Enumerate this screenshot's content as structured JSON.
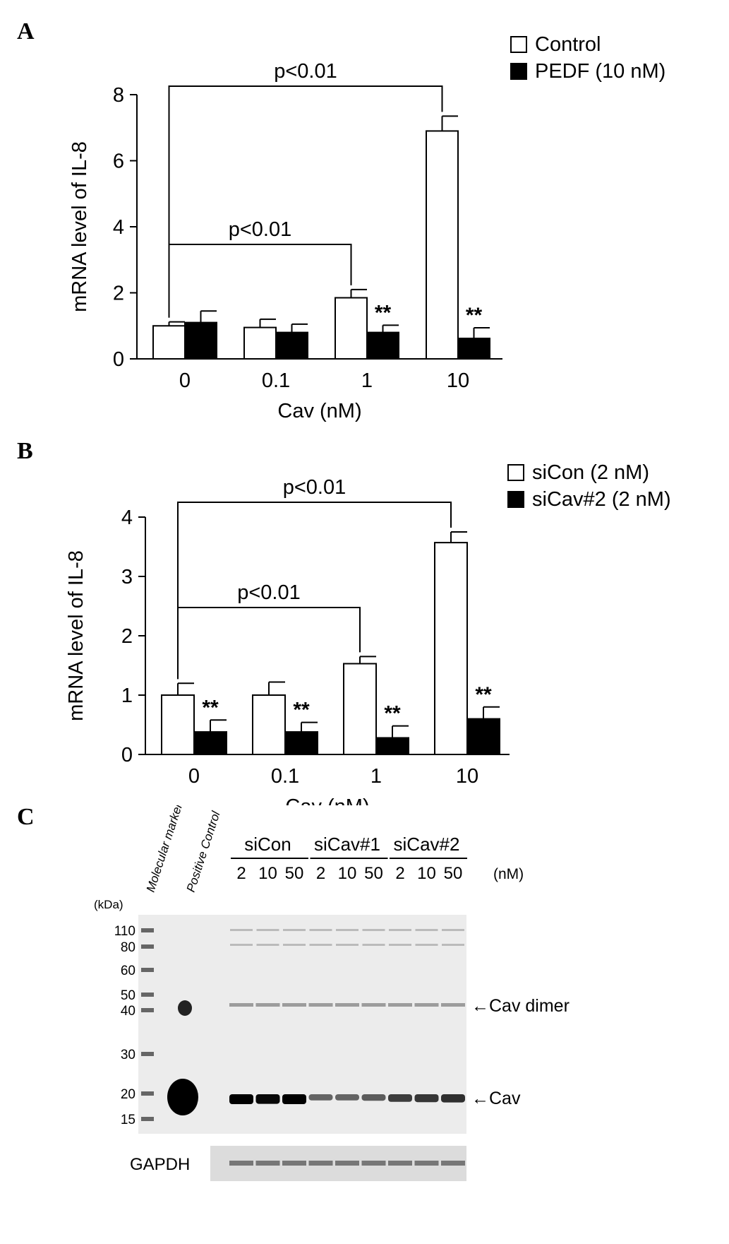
{
  "panels": {
    "a": {
      "letter": "A"
    },
    "b": {
      "letter": "B"
    },
    "c": {
      "letter": "C"
    }
  },
  "chart_data": [
    {
      "type": "bar",
      "panel": "A",
      "xlabel": "Cav (nM)",
      "ylabel": "mRNA level of IL-8",
      "categories": [
        "0",
        "0.1",
        "1",
        "10"
      ],
      "ylim": [
        0,
        8
      ],
      "yticks": [
        "0",
        "2",
        "4",
        "6",
        "8"
      ],
      "series": [
        {
          "name": "Control",
          "fill": "#ffffff",
          "values": [
            1.0,
            0.95,
            1.85,
            6.9
          ],
          "errors": [
            0.12,
            0.25,
            0.25,
            0.45
          ]
        },
        {
          "name": "PEDF (10 nM)",
          "fill": "#000000",
          "values": [
            1.1,
            0.8,
            0.8,
            0.62
          ],
          "errors": [
            0.35,
            0.25,
            0.22,
            0.32
          ]
        }
      ],
      "annotations": {
        "pvalue": [
          "p<0.01",
          "p<0.01"
        ],
        "significance": [
          "",
          "",
          "**",
          "**"
        ]
      },
      "legend_position": "top-right",
      "grid": false
    },
    {
      "type": "bar",
      "panel": "B",
      "xlabel": "Cav (nM)",
      "ylabel": "mRNA level of IL-8",
      "categories": [
        "0",
        "0.1",
        "1",
        "10"
      ],
      "ylim": [
        0,
        4
      ],
      "yticks": [
        "0",
        "1",
        "2",
        "3",
        "4"
      ],
      "series": [
        {
          "name": "siCon (2 nM)",
          "fill": "#ffffff",
          "values": [
            1.0,
            1.0,
            1.53,
            3.57
          ],
          "errors": [
            0.2,
            0.22,
            0.12,
            0.18
          ]
        },
        {
          "name": "siCav#2 (2 nM)",
          "fill": "#000000",
          "values": [
            0.38,
            0.38,
            0.28,
            0.6
          ],
          "errors": [
            0.2,
            0.16,
            0.2,
            0.2
          ]
        }
      ],
      "annotations": {
        "pvalue": [
          "p<0.01",
          "p<0.01"
        ],
        "significance": [
          "**",
          "**",
          "**",
          "**"
        ]
      },
      "legend_position": "top-right",
      "grid": false
    }
  ],
  "blot": {
    "lane_labels": [
      "Molecular marker",
      "Positive Control"
    ],
    "groups": [
      {
        "name": "siCon",
        "doses": [
          "2",
          "10",
          "50"
        ]
      },
      {
        "name": "siCav#1",
        "doses": [
          "2",
          "10",
          "50"
        ]
      },
      {
        "name": "siCav#2",
        "doses": [
          "2",
          "10",
          "50"
        ]
      }
    ],
    "dose_unit": "(nM)",
    "kda_label": "(kDa)",
    "markers": [
      "110",
      "80",
      "60",
      "50",
      "40",
      "30",
      "20",
      "15"
    ],
    "band_labels": {
      "dimer": "←Cav dimer",
      "monomer": "←Cav"
    },
    "loading_control": "GAPDH",
    "cav_monomer_intensity": [
      1.0,
      0.95,
      1.0,
      0.35,
      0.35,
      0.4,
      0.6,
      0.65,
      0.7
    ]
  }
}
